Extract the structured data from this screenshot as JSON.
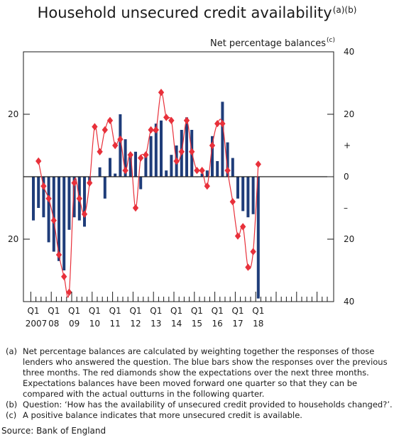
{
  "title": "Household unsecured credit availability",
  "title_notes": "(a)(b)",
  "ylabel": "Net percentage balances",
  "ylabel_note": "(c)",
  "source": "Source: Bank of England",
  "footnotes": [
    {
      "key": "(a)",
      "text": "Net percentage balances are calculated by weighting together the responses of those lenders who answered the question. The blue bars show the responses over the previous three months. The red diamonds show the expectations over the next three months. Expectations balances have been moved forward one quarter so that they can be compared with the actual outturns in the following quarter."
    },
    {
      "key": "(b)",
      "text": "Question: ‘How has the availability of unsecured credit provided to households changed?’."
    },
    {
      "key": "(c)",
      "text": "A positive balance indicates that more unsecured credit is available."
    }
  ],
  "colors": {
    "bars": "#1f3d7a",
    "diamonds": "#e8303a",
    "line": "#e8303a",
    "axis": "#1a1a1a"
  },
  "chart_data": {
    "type": "bar",
    "ylim": [
      -40,
      40
    ],
    "x_start": "2007 Q1",
    "y_ticks": [
      "40",
      "20",
      "+",
      "0",
      "–",
      "20",
      "40"
    ],
    "y_tick_values": [
      40,
      20,
      10,
      0,
      -10,
      -20,
      -40
    ],
    "x_quarter_labels": [
      "Q1",
      "Q1",
      "Q1",
      "Q1",
      "Q1",
      "Q1",
      "Q1",
      "Q1",
      "Q1",
      "Q1",
      "Q1",
      "Q1"
    ],
    "x_year_labels": [
      "2007",
      "08",
      "09",
      "10",
      "11",
      "12",
      "13",
      "14",
      "15",
      "16",
      "17",
      "18"
    ],
    "series": [
      {
        "name": "Past three months",
        "values": [
          -14,
          -10,
          -13,
          -21,
          -24,
          -27,
          -30,
          -17,
          -13,
          -14,
          -16,
          -2,
          0,
          3,
          -7,
          6,
          1,
          20,
          12,
          7,
          8,
          -4,
          7,
          13,
          17,
          18,
          2,
          7,
          10,
          15,
          19,
          15,
          0,
          1,
          2,
          13,
          5,
          24,
          11,
          6,
          -7,
          -11,
          -13,
          -12,
          -39
        ]
      },
      {
        "name": "Next three months",
        "values": [
          5,
          -3,
          -7,
          -14,
          -25,
          -32,
          -37,
          -2,
          -7,
          -12,
          -2,
          16,
          8,
          15,
          18,
          10,
          12,
          2,
          7,
          -10,
          6,
          7,
          15,
          15,
          27,
          19,
          18,
          5,
          8,
          18,
          8,
          2,
          2,
          -3,
          10,
          17,
          17,
          2,
          -8,
          -19,
          -16,
          -29,
          -24,
          4
        ]
      }
    ]
  }
}
